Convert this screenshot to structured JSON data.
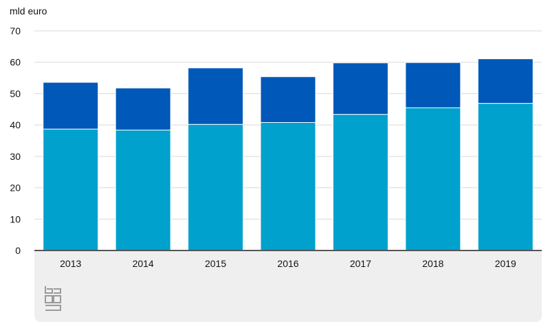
{
  "chart_data": {
    "type": "bar",
    "stacked": true,
    "ylabel": "mld euro",
    "ylim": [
      0,
      70
    ],
    "yticks": [
      0,
      10,
      20,
      30,
      40,
      50,
      60,
      70
    ],
    "categories": [
      "2013",
      "2014",
      "2015",
      "2016",
      "2017",
      "2018",
      "2019"
    ],
    "series": [
      {
        "values": [
          38.7,
          38.4,
          40.2,
          40.8,
          43.4,
          45.5,
          46.9
        ],
        "color": "#00a1cd"
      },
      {
        "values": [
          14.9,
          13.4,
          18.0,
          14.6,
          16.4,
          14.4,
          14.2
        ],
        "color": "#0058b8"
      }
    ],
    "grid": true,
    "legend": "none"
  },
  "logo": {
    "icon": "cbs-logo-icon",
    "color": "#9a9a9a"
  }
}
